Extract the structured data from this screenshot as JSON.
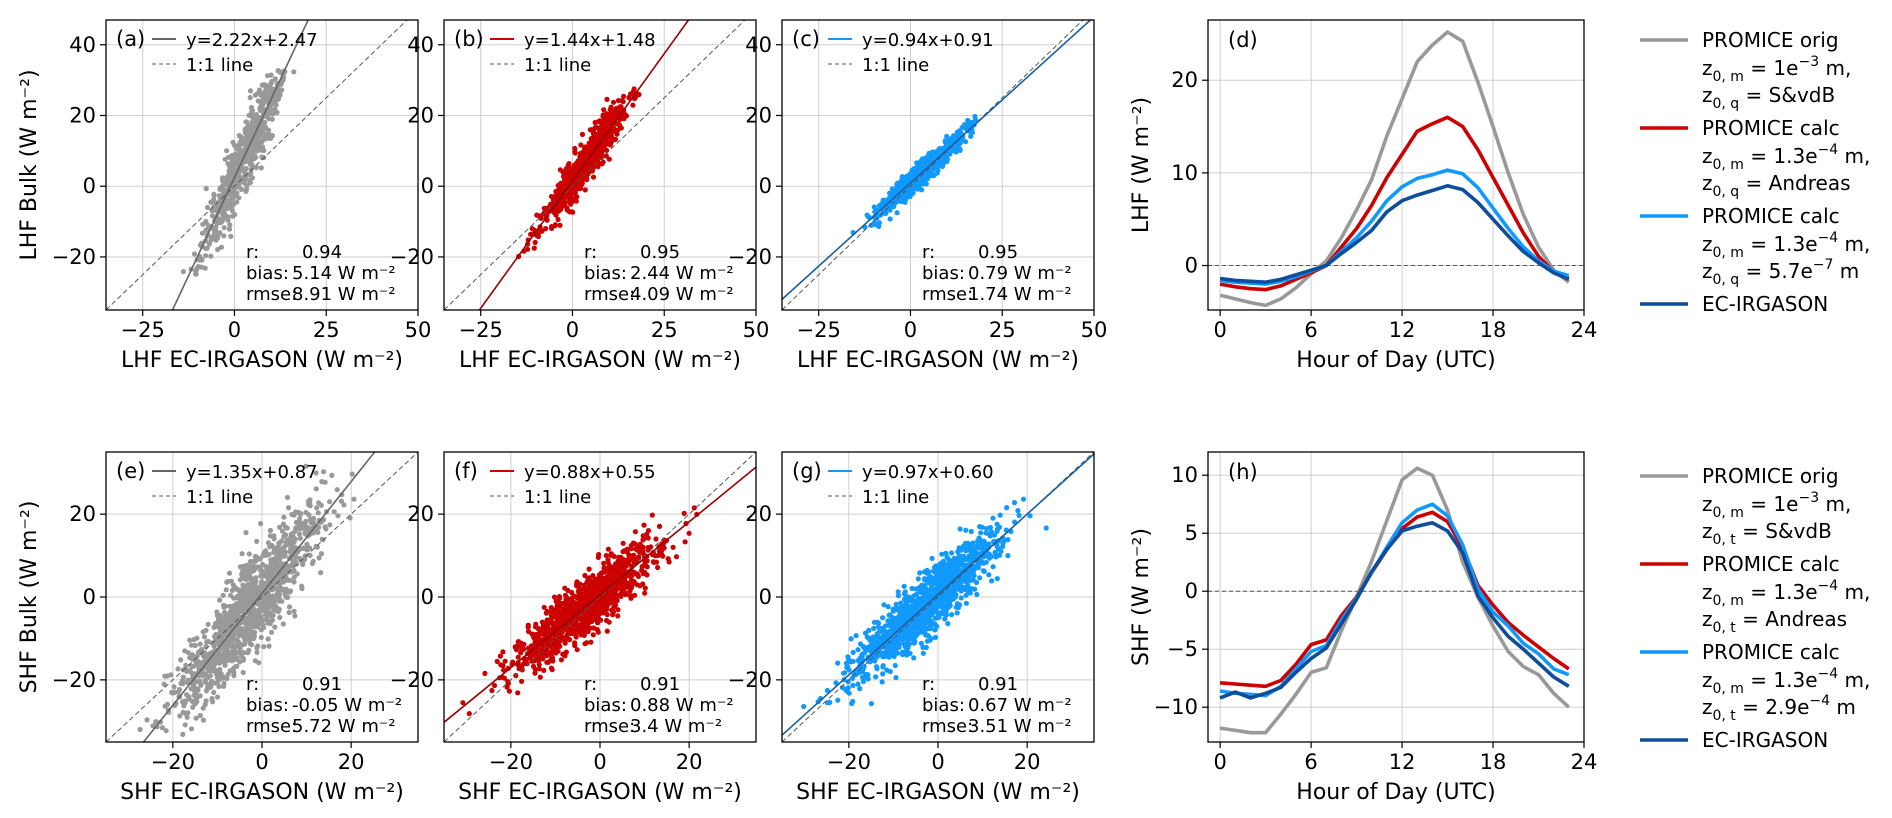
{
  "colors": {
    "orig": "#999999",
    "calc_andreas": "#cc0000",
    "calc_other": "#1199ff",
    "ec": "#0d4d9a",
    "grid": "#cfcfcf",
    "one_to_one": "#555555"
  },
  "scatter_panels": [
    {
      "key": "a",
      "label": "(a)",
      "fit_label": "y=2.22x+2.47",
      "ref_label": "1:1 line",
      "slope": 2.22,
      "intercept": 2.47,
      "stats": {
        "r_label": "r:",
        "r": "0.94",
        "bias_label": "bias:",
        "bias": "5.14 W m⁻²",
        "rmse_label": "rmse:",
        "rmse": "8.91 W m⁻²"
      },
      "xlabel": "LHF EC-IRGASON (W m⁻²)",
      "ylabel": "LHF Bulk (W m⁻²)",
      "color": "#999999",
      "xlim": [
        -35,
        50
      ],
      "ylim": [
        -35,
        47
      ],
      "xticks": [
        -25,
        0,
        25,
        50
      ],
      "yticks": [
        -20,
        0,
        20,
        40
      ],
      "sample": {
        "n": 650,
        "xmean": 3,
        "xsd": 6,
        "noise": 4.8,
        "ylo": -25,
        "yhi": 33,
        "seed": 11
      }
    },
    {
      "key": "b",
      "label": "(b)",
      "fit_label": "y=1.44x+1.48",
      "ref_label": "1:1 line",
      "slope": 1.44,
      "intercept": 1.48,
      "stats": {
        "r_label": "r:",
        "r": "0.95",
        "bias_label": "bias:",
        "bias": "2.44 W m⁻²",
        "rmse_label": "rmse:",
        "rmse": "4.09 W m⁻²"
      },
      "xlabel": "LHF EC-IRGASON (W m⁻²)",
      "ylabel": "",
      "color": "#cc0000",
      "xlim": [
        -35,
        50
      ],
      "ylim": [
        -35,
        47
      ],
      "xticks": [
        -25,
        0,
        25,
        50
      ],
      "yticks": [
        -20,
        0,
        20,
        40
      ],
      "sample": {
        "n": 650,
        "xmean": 3,
        "xsd": 6,
        "noise": 3.0,
        "ylo": -20,
        "yhi": 28,
        "seed": 23
      }
    },
    {
      "key": "c",
      "label": "(c)",
      "fit_label": "y=0.94x+0.91",
      "ref_label": "1:1 line",
      "slope": 0.94,
      "intercept": 0.91,
      "stats": {
        "r_label": "r:",
        "r": "0.95",
        "bias_label": "bias:",
        "bias": "0.79 W m⁻²",
        "rmse_label": "rmse:",
        "rmse": "1.74 W m⁻²"
      },
      "xlabel": "LHF EC-IRGASON (W m⁻²)",
      "ylabel": "",
      "color": "#1199ff",
      "xlim": [
        -35,
        50
      ],
      "ylim": [
        -35,
        47
      ],
      "xticks": [
        -25,
        0,
        25,
        50
      ],
      "yticks": [
        -20,
        0,
        20,
        40
      ],
      "sample": {
        "n": 650,
        "xmean": 3,
        "xsd": 6,
        "noise": 1.7,
        "ylo": -15,
        "yhi": 20,
        "seed": 37
      }
    },
    {
      "key": "e",
      "label": "(e)",
      "fit_label": "y=1.35x+0.87",
      "ref_label": "1:1 line",
      "slope": 1.35,
      "intercept": 0.87,
      "stats": {
        "r_label": "r:",
        "r": "0.91",
        "bias_label": "bias:",
        "bias": "-0.05 W m⁻²",
        "rmse_label": "rmse:",
        "rmse": "5.72 W m⁻²"
      },
      "xlabel": "SHF EC-IRGASON (W m⁻²)",
      "ylabel": "SHF Bulk (W m⁻²)",
      "color": "#999999",
      "xlim": [
        -35,
        35
      ],
      "ylim": [
        -35,
        35
      ],
      "xticks": [
        -20,
        0,
        20
      ],
      "yticks": [
        -20,
        0,
        20
      ],
      "sample": {
        "n": 1200,
        "xmean": -3,
        "xsd": 8,
        "noise": 5.5,
        "ylo": -34,
        "yhi": 33,
        "seed": 41
      }
    },
    {
      "key": "f",
      "label": "(f)",
      "fit_label": "y=0.88x+0.55",
      "ref_label": "1:1 line",
      "slope": 0.88,
      "intercept": 0.55,
      "stats": {
        "r_label": "r:",
        "r": "0.91",
        "bias_label": "bias:",
        "bias": "0.88 W m⁻²",
        "rmse_label": "rmse:",
        "rmse": "3.4 W m⁻²"
      },
      "xlabel": "SHF EC-IRGASON (W m⁻²)",
      "ylabel": "",
      "color": "#cc0000",
      "xlim": [
        -35,
        35
      ],
      "ylim": [
        -35,
        35
      ],
      "xticks": [
        -20,
        0,
        20
      ],
      "yticks": [
        -20,
        0,
        20
      ],
      "sample": {
        "n": 1200,
        "xmean": -3,
        "xsd": 8,
        "noise": 3.4,
        "ylo": -30,
        "yhi": 22,
        "seed": 53
      }
    },
    {
      "key": "g",
      "label": "(g)",
      "fit_label": "y=0.97x+0.60",
      "ref_label": "1:1 line",
      "slope": 0.97,
      "intercept": 0.6,
      "stats": {
        "r_label": "r:",
        "r": "0.91",
        "bias_label": "bias:",
        "bias": "0.67 W m⁻²",
        "rmse_label": "rmse:",
        "rmse": "3.51 W m⁻²"
      },
      "xlabel": "SHF EC-IRGASON (W m⁻²)",
      "ylabel": "",
      "color": "#1199ff",
      "xlim": [
        -35,
        35
      ],
      "ylim": [
        -35,
        35
      ],
      "xticks": [
        -20,
        0,
        20
      ],
      "yticks": [
        -20,
        0,
        20
      ],
      "sample": {
        "n": 1200,
        "xmean": -3,
        "xsd": 8,
        "noise": 3.5,
        "ylo": -30,
        "yhi": 24,
        "seed": 67
      }
    }
  ],
  "chart_data": [
    {
      "type": "line",
      "panel": "d",
      "label": "(d)",
      "xlabel": "Hour of Day (UTC)",
      "ylabel": "LHF (W m⁻²)",
      "xlim": [
        -0.8,
        24
      ],
      "ylim": [
        -4.8,
        26.5
      ],
      "xticks": [
        0,
        6,
        12,
        18,
        24
      ],
      "yticks": [
        0,
        10,
        20
      ],
      "zero_line": true,
      "x": [
        0,
        1,
        2,
        3,
        4,
        5,
        6,
        7,
        8,
        9,
        10,
        11,
        12,
        13,
        14,
        15,
        16,
        17,
        18,
        19,
        20,
        21,
        22,
        23
      ],
      "series": [
        {
          "name": "PROMICE orig",
          "color": "#999999",
          "values": [
            -3.2,
            -3.6,
            -4.0,
            -4.3,
            -3.6,
            -2.4,
            -0.9,
            0.5,
            3.0,
            6.0,
            9.3,
            14.0,
            18.0,
            22.0,
            23.8,
            25.2,
            24.2,
            19.8,
            15.0,
            10.0,
            5.5,
            2.0,
            -0.5,
            -1.8
          ]
        },
        {
          "name": "PROMICE calc",
          "color": "#cc0000",
          "values": [
            -2.0,
            -2.3,
            -2.5,
            -2.6,
            -2.2,
            -1.5,
            -0.8,
            0.0,
            2.0,
            4.0,
            6.5,
            9.5,
            12.0,
            14.5,
            15.3,
            16.0,
            15.0,
            12.5,
            9.5,
            6.5,
            3.5,
            1.0,
            -0.7,
            -1.4
          ]
        },
        {
          "name": "PROMICE calc",
          "color": "#1199ff",
          "values": [
            -1.6,
            -1.8,
            -1.9,
            -2.0,
            -1.7,
            -1.2,
            -0.6,
            0.0,
            1.5,
            3.0,
            4.8,
            7.0,
            8.5,
            9.4,
            9.8,
            10.3,
            9.9,
            8.4,
            6.2,
            4.0,
            2.0,
            0.5,
            -0.6,
            -1.1
          ]
        },
        {
          "name": "EC-IRGASON",
          "color": "#0d4d9a",
          "values": [
            -1.4,
            -1.6,
            -1.7,
            -1.8,
            -1.5,
            -1.0,
            -0.5,
            0.0,
            1.3,
            2.5,
            3.8,
            5.8,
            7.0,
            7.6,
            8.1,
            8.6,
            8.2,
            6.8,
            5.0,
            3.2,
            1.5,
            0.3,
            -0.8,
            -1.5
          ]
        }
      ]
    },
    {
      "type": "line",
      "panel": "h",
      "label": "(h)",
      "xlabel": "Hour of Day (UTC)",
      "ylabel": "SHF (W m⁻²)",
      "xlim": [
        -0.8,
        24
      ],
      "ylim": [
        -13,
        12
      ],
      "xticks": [
        0,
        6,
        12,
        18,
        24
      ],
      "yticks": [
        -10,
        -5,
        0,
        5,
        10
      ],
      "zero_line": true,
      "x": [
        0,
        1,
        2,
        3,
        4,
        5,
        6,
        7,
        8,
        9,
        10,
        11,
        12,
        13,
        14,
        15,
        16,
        17,
        18,
        19,
        20,
        21,
        22,
        23
      ],
      "series": [
        {
          "name": "PROMICE orig",
          "color": "#999999",
          "values": [
            -11.8,
            -12.0,
            -12.2,
            -12.2,
            -10.6,
            -8.9,
            -7.0,
            -6.6,
            -3.4,
            -0.5,
            2.6,
            6.1,
            9.6,
            10.6,
            10.0,
            7.0,
            2.5,
            -0.5,
            -3.0,
            -5.2,
            -6.5,
            -7.2,
            -8.8,
            -10.0
          ]
        },
        {
          "name": "PROMICE calc",
          "color": "#cc0000",
          "values": [
            -7.9,
            -8.0,
            -8.1,
            -8.2,
            -7.7,
            -6.3,
            -4.6,
            -4.2,
            -2.1,
            -0.5,
            1.6,
            3.6,
            5.4,
            6.4,
            6.8,
            6.0,
            3.8,
            0.5,
            -1.2,
            -2.7,
            -3.8,
            -4.8,
            -5.8,
            -6.7
          ]
        },
        {
          "name": "PROMICE calc",
          "color": "#1199ff",
          "values": [
            -8.6,
            -8.8,
            -8.9,
            -9.0,
            -8.2,
            -6.7,
            -5.2,
            -4.7,
            -2.5,
            -0.6,
            1.6,
            3.8,
            5.9,
            7.0,
            7.5,
            6.5,
            4.0,
            0.2,
            -1.8,
            -3.0,
            -4.5,
            -5.4,
            -6.7,
            -7.2
          ]
        },
        {
          "name": "EC-IRGASON",
          "color": "#0d4d9a",
          "values": [
            -9.2,
            -8.7,
            -9.2,
            -8.8,
            -8.3,
            -7.0,
            -5.8,
            -4.9,
            -2.8,
            -0.7,
            1.7,
            3.6,
            5.2,
            5.6,
            5.9,
            5.2,
            3.3,
            -0.4,
            -2.3,
            -3.9,
            -5.0,
            -6.2,
            -7.4,
            -8.2
          ]
        }
      ]
    }
  ],
  "legend_top": [
    {
      "color": "#999999",
      "title": "PROMICE orig",
      "line2": {
        "pre": "z",
        "sub": "0, m",
        "post": " = 1e",
        "sup": "−3",
        "tail": " m,"
      },
      "line3": {
        "pre": "z",
        "sub": "0, q",
        "post": " = S&vdB",
        "sup": "",
        "tail": ""
      }
    },
    {
      "color": "#cc0000",
      "title": "PROMICE calc",
      "line2": {
        "pre": "z",
        "sub": "0, m",
        "post": " = 1.3e",
        "sup": "−4",
        "tail": " m,"
      },
      "line3": {
        "pre": "z",
        "sub": "0, q",
        "post": " = Andreas",
        "sup": "",
        "tail": ""
      }
    },
    {
      "color": "#1199ff",
      "title": "PROMICE calc",
      "line2": {
        "pre": "z",
        "sub": "0, m",
        "post": " = 1.3e",
        "sup": "−4",
        "tail": " m,"
      },
      "line3": {
        "pre": "z",
        "sub": "0, q",
        "post": " = 5.7e",
        "sup": "−7",
        "tail": " m"
      }
    },
    {
      "color": "#0d4d9a",
      "title": "EC-IRGASON"
    }
  ],
  "legend_bottom": [
    {
      "color": "#999999",
      "title": "PROMICE orig",
      "line2": {
        "pre": "z",
        "sub": "0, m",
        "post": " = 1e",
        "sup": "−3",
        "tail": " m,"
      },
      "line3": {
        "pre": "z",
        "sub": "0, t",
        "post": " = S&vdB",
        "sup": "",
        "tail": ""
      }
    },
    {
      "color": "#cc0000",
      "title": "PROMICE calc",
      "line2": {
        "pre": "z",
        "sub": "0, m",
        "post": " = 1.3e",
        "sup": "−4",
        "tail": " m,"
      },
      "line3": {
        "pre": "z",
        "sub": "0, t",
        "post": " = Andreas",
        "sup": "",
        "tail": ""
      }
    },
    {
      "color": "#1199ff",
      "title": "PROMICE calc",
      "line2": {
        "pre": "z",
        "sub": "0, m",
        "post": " = 1.3e",
        "sup": "−4",
        "tail": " m,"
      },
      "line3": {
        "pre": "z",
        "sub": "0, t",
        "post": " = 2.9e",
        "sup": "−4",
        "tail": " m"
      }
    },
    {
      "color": "#0d4d9a",
      "title": "EC-IRGASON"
    }
  ]
}
